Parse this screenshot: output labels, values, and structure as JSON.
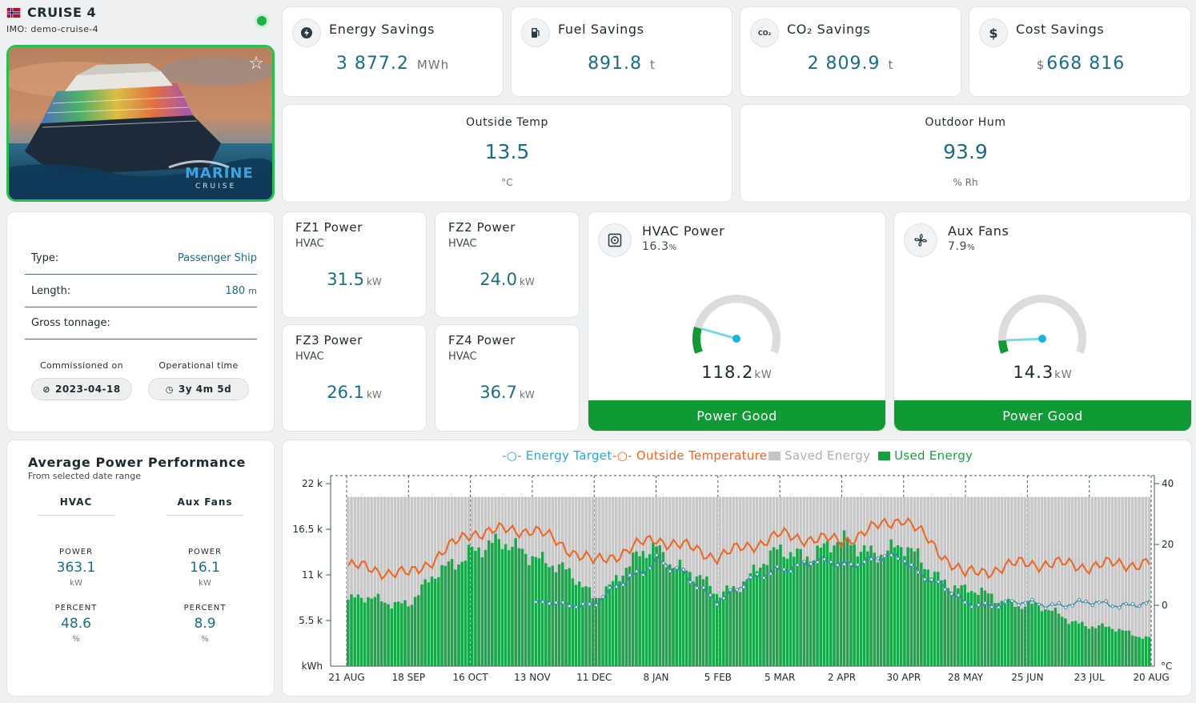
{
  "ship": {
    "name": "CRUISE 4",
    "imo": "IMO: demo-cruise-4",
    "image_brand": "MARINE",
    "image_brand_sub": "CRUISE"
  },
  "stats": [
    {
      "label": "Energy Savings",
      "value": "3 877.2",
      "unit": "MWh",
      "icon": "lightning-icon"
    },
    {
      "label": "Fuel Savings",
      "value": "891.8",
      "unit": "t",
      "icon": "fuel-pump-icon"
    },
    {
      "label": "CO₂ Savings",
      "value": "2 809.9",
      "unit": "t",
      "icon": "co2-icon",
      "icon_text": "CO₂"
    },
    {
      "label": "Cost Savings",
      "value": "668 816",
      "prefix": "$",
      "icon": "dollar-icon",
      "icon_text": "$"
    }
  ],
  "weather": [
    {
      "label": "Outside Temp",
      "value": "13.5",
      "unit": "°C"
    },
    {
      "label": "Outdoor Hum",
      "value": "93.9",
      "unit": "% Rh"
    }
  ],
  "info": {
    "type_label": "Type:",
    "type_value": "Passenger Ship",
    "length_label": "Length:",
    "length_value": "180",
    "length_unit": "m",
    "gross_label": "Gross tonnage:",
    "commissioned_label": "Commissioned on",
    "commissioned_value": "2023-04-18",
    "operational_label": "Operational time",
    "operational_value": "3y 4m 5d"
  },
  "fz": [
    {
      "title": "FZ1 Power",
      "sub": "HVAC",
      "value": "31.5",
      "unit": "kW"
    },
    {
      "title": "FZ2 Power",
      "sub": "HVAC",
      "value": "24.0",
      "unit": "kW"
    },
    {
      "title": "FZ3 Power",
      "sub": "HVAC",
      "value": "26.1",
      "unit": "kW"
    },
    {
      "title": "FZ4 Power",
      "sub": "HVAC",
      "value": "36.7",
      "unit": "kW"
    }
  ],
  "gauges": [
    {
      "title": "HVAC Power",
      "pct": "16.3",
      "pct_unit": "%",
      "pct_num": 16.3,
      "value": "118.2",
      "unit": "kW",
      "status": "Power Good"
    },
    {
      "title": "Aux Fans",
      "pct": "7.9",
      "pct_unit": "%",
      "pct_num": 7.9,
      "value": "14.3",
      "unit": "kW",
      "status": "Power Good"
    }
  ],
  "avg": {
    "title": "Average Power Performance",
    "sub": "From selected date range",
    "cols": [
      {
        "head": "HVAC",
        "power_label": "POWER",
        "power": "363.1",
        "power_unit": "kW",
        "pct_label": "PERCENT",
        "pct": "48.6",
        "pct_unit": "%"
      },
      {
        "head": "Aux Fans",
        "power_label": "POWER",
        "power": "16.1",
        "power_unit": "kW",
        "pct_label": "PERCENT",
        "pct": "8.9",
        "pct_unit": "%"
      }
    ]
  },
  "colors": {
    "accent": "#1a6d86",
    "green": "#0f9b34",
    "used": "#1aa64a",
    "saved": "#c4c4c4",
    "temp": "#f0641e",
    "target": "#3a8fa8"
  },
  "chart_data": {
    "type": "bar",
    "legend": [
      "Energy Target",
      "Outside Temperature",
      "Saved Energy",
      "Used Energy"
    ],
    "x_ticks": [
      "21 AUG",
      "18 SEP",
      "16 OCT",
      "13 NOV",
      "11 DEC",
      "8 JAN",
      "5 FEB",
      "5 MAR",
      "2 APR",
      "30 APR",
      "28 MAY",
      "25 JUN",
      "23 JUL",
      "20 AUG"
    ],
    "y_ticks": [
      "22 k",
      "16.5 k",
      "11 k",
      "5.5 k"
    ],
    "y_unit": "kWh",
    "y_ticks_right": [
      "40",
      "20",
      "0"
    ],
    "y_unit_right": "°C",
    "ylim": [
      0,
      22000
    ],
    "ylim_right": [
      -20,
      40
    ],
    "total_energy": 20400,
    "used_energy_monthly": {
      "x": [
        "21 AUG",
        "18 SEP",
        "16 OCT",
        "13 NOV",
        "11 DEC",
        "8 JAN",
        "5 FEB",
        "5 MAR",
        "2 APR",
        "30 APR",
        "28 MAY",
        "25 JUN",
        "23 JUL",
        "20 AUG"
      ],
      "values": [
        8000,
        7800,
        14500,
        14000,
        8500,
        14500,
        8500,
        13500,
        14500,
        14000,
        9000,
        7500,
        5000,
        3500
      ]
    },
    "outside_temperature_monthly": {
      "x": [
        "21 AUG",
        "18 SEP",
        "16 OCT",
        "13 NOV",
        "11 DEC",
        "8 JAN",
        "5 FEB",
        "5 MAR",
        "2 APR",
        "30 APR",
        "28 MAY",
        "25 JUN",
        "23 JUL",
        "20 AUG"
      ],
      "values": [
        13,
        10,
        24,
        25,
        14,
        22,
        16,
        23,
        21,
        29,
        10,
        14,
        13,
        14
      ]
    },
    "energy_target_monthly": {
      "x": [
        "21 AUG",
        "18 SEP",
        "16 OCT",
        "13 NOV",
        "11 DEC",
        "8 JAN",
        "5 FEB",
        "5 MAR",
        "2 APR",
        "30 APR",
        "28 MAY",
        "25 JUN",
        "23 JUL",
        "20 AUG"
      ],
      "values": [
        null,
        null,
        null,
        null,
        7500,
        13000,
        8000,
        12000,
        12500,
        13000,
        7500,
        7500,
        7500,
        7500
      ]
    }
  }
}
